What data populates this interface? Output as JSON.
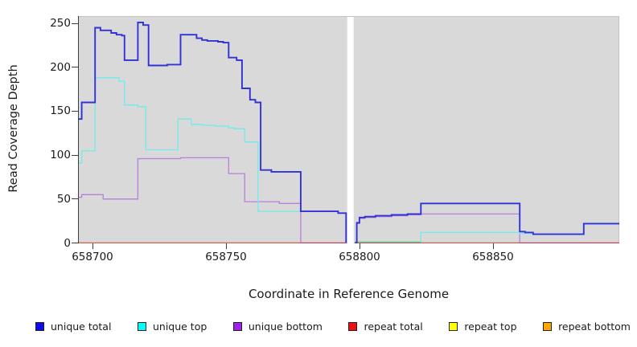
{
  "legend": {
    "items": [
      {
        "label": "unique total",
        "color": "#0b0bee"
      },
      {
        "label": "unique top",
        "color": "#00ffff"
      },
      {
        "label": "unique bottom",
        "color": "#a020f0"
      },
      {
        "label": "repeat total",
        "color": "#ee1111"
      },
      {
        "label": "repeat top",
        "color": "#ffff00"
      },
      {
        "label": "repeat bottom",
        "color": "#ffa500"
      }
    ]
  },
  "chart_data": {
    "type": "line",
    "title": "",
    "xlabel": "Coordinate in Reference Genome",
    "ylabel": "Read Coverage Depth",
    "xlim": [
      658694.6,
      658897.3
    ],
    "ylim": [
      0,
      258
    ],
    "x_ticks": [
      658700,
      658750,
      658800,
      658850
    ],
    "y_ticks": [
      0,
      50,
      100,
      150,
      200,
      250
    ],
    "grid": false,
    "legend_position": "bottom",
    "panel_bg": "#d9d9d9",
    "gap": {
      "from": 658795.4,
      "to": 658797.8,
      "note": "white no-data column"
    },
    "series": [
      {
        "name": "unique bottom",
        "color": "#b87fdc",
        "width": 1.3,
        "paths": [
          [
            [
              658694.6,
              52
            ],
            [
              658696,
              55
            ],
            [
              658704,
              50
            ],
            [
              658717,
              96
            ],
            [
              658733,
              97
            ],
            [
              658751,
              79
            ],
            [
              658757,
              47
            ],
            [
              658770,
              45
            ],
            [
              658778,
              0
            ],
            [
              658795,
              0
            ]
          ],
          [
            [
              658798.3,
              0
            ],
            [
              658799,
              22
            ],
            [
              658800,
              28
            ],
            [
              658802,
              29
            ],
            [
              658806,
              30
            ],
            [
              658812,
              31
            ],
            [
              658818,
              32
            ],
            [
              658823,
              33
            ],
            [
              658860,
              0
            ],
            [
              658897.3,
              0
            ]
          ]
        ]
      },
      {
        "name": "unique top",
        "color": "#70ebeb",
        "width": 1.3,
        "paths": [
          [
            [
              658694.6,
              91
            ],
            [
              658696,
              105
            ],
            [
              658701,
              188
            ],
            [
              658710,
              184
            ],
            [
              658712,
              157
            ],
            [
              658717,
              155
            ],
            [
              658720,
              106
            ],
            [
              658732,
              141
            ],
            [
              658737,
              135
            ],
            [
              658741,
              134
            ],
            [
              658746,
              133
            ],
            [
              658751,
              131
            ],
            [
              658753,
              130
            ],
            [
              658757,
              115
            ],
            [
              658762,
              36
            ],
            [
              658792,
              34
            ],
            [
              658795,
              0
            ]
          ],
          [
            [
              658798.3,
              1
            ],
            [
              658823,
              12
            ],
            [
              658860,
              11
            ],
            [
              658865,
              10
            ],
            [
              658884,
              22
            ],
            [
              658897.3,
              22
            ]
          ]
        ]
      },
      {
        "name": "repeat top",
        "color": "#f2ee55",
        "width": 1.2,
        "paths": [
          [
            [
              658694.6,
              0
            ],
            [
              658795,
              0
            ]
          ],
          [
            [
              658798.3,
              0
            ],
            [
              658897.3,
              0
            ]
          ]
        ]
      },
      {
        "name": "repeat total",
        "color": "#cc4468",
        "width": 1.4,
        "paths": [
          [
            [
              658694.6,
              0
            ],
            [
              658795,
              0
            ]
          ],
          [
            [
              658798.3,
              0
            ],
            [
              658897.3,
              0
            ]
          ]
        ]
      },
      {
        "name": "repeat bottom",
        "color": "#ff9f1c",
        "width": 2.2,
        "dy": 1.2,
        "paths": [
          [
            [
              658694.6,
              0
            ],
            [
              658778,
              0
            ]
          ],
          [
            [
              658823,
              0
            ],
            [
              658860,
              0
            ]
          ]
        ]
      },
      {
        "name": "baseline-overlap-artifact",
        "color": "#79c77e",
        "width": 1.5,
        "paths": [
          [
            [
              658798.3,
              1
            ],
            [
              658823,
              1
            ]
          ]
        ]
      },
      {
        "name": "unique total",
        "color": "#3032d8",
        "width": 1.9,
        "paths": [
          [
            [
              658694.6,
              141
            ],
            [
              658696,
              160
            ],
            [
              658701,
              245
            ],
            [
              658703,
              242
            ],
            [
              658707,
              239
            ],
            [
              658709,
              237
            ],
            [
              658711,
              236
            ],
            [
              658712,
              208
            ],
            [
              658717,
              251
            ],
            [
              658719,
              248
            ],
            [
              658721,
              202
            ],
            [
              658728,
              203
            ],
            [
              658733,
              237
            ],
            [
              658739,
              233
            ],
            [
              658741,
              231
            ],
            [
              658743,
              230
            ],
            [
              658747,
              229
            ],
            [
              658749,
              228
            ],
            [
              658751,
              211
            ],
            [
              658754,
              208
            ],
            [
              658756,
              176
            ],
            [
              658759,
              163
            ],
            [
              658761,
              160
            ],
            [
              658763,
              83
            ],
            [
              658767,
              81
            ],
            [
              658778,
              36
            ],
            [
              658792,
              34
            ],
            [
              658795,
              0
            ]
          ],
          [
            [
              658798.3,
              0
            ],
            [
              658799,
              23
            ],
            [
              658800,
              29
            ],
            [
              658802,
              30
            ],
            [
              658806,
              31
            ],
            [
              658812,
              32
            ],
            [
              658818,
              33
            ],
            [
              658823,
              45
            ],
            [
              658860,
              13
            ],
            [
              658862,
              12
            ],
            [
              658865,
              10
            ],
            [
              658884,
              22
            ],
            [
              658897.3,
              22
            ]
          ]
        ]
      }
    ]
  }
}
